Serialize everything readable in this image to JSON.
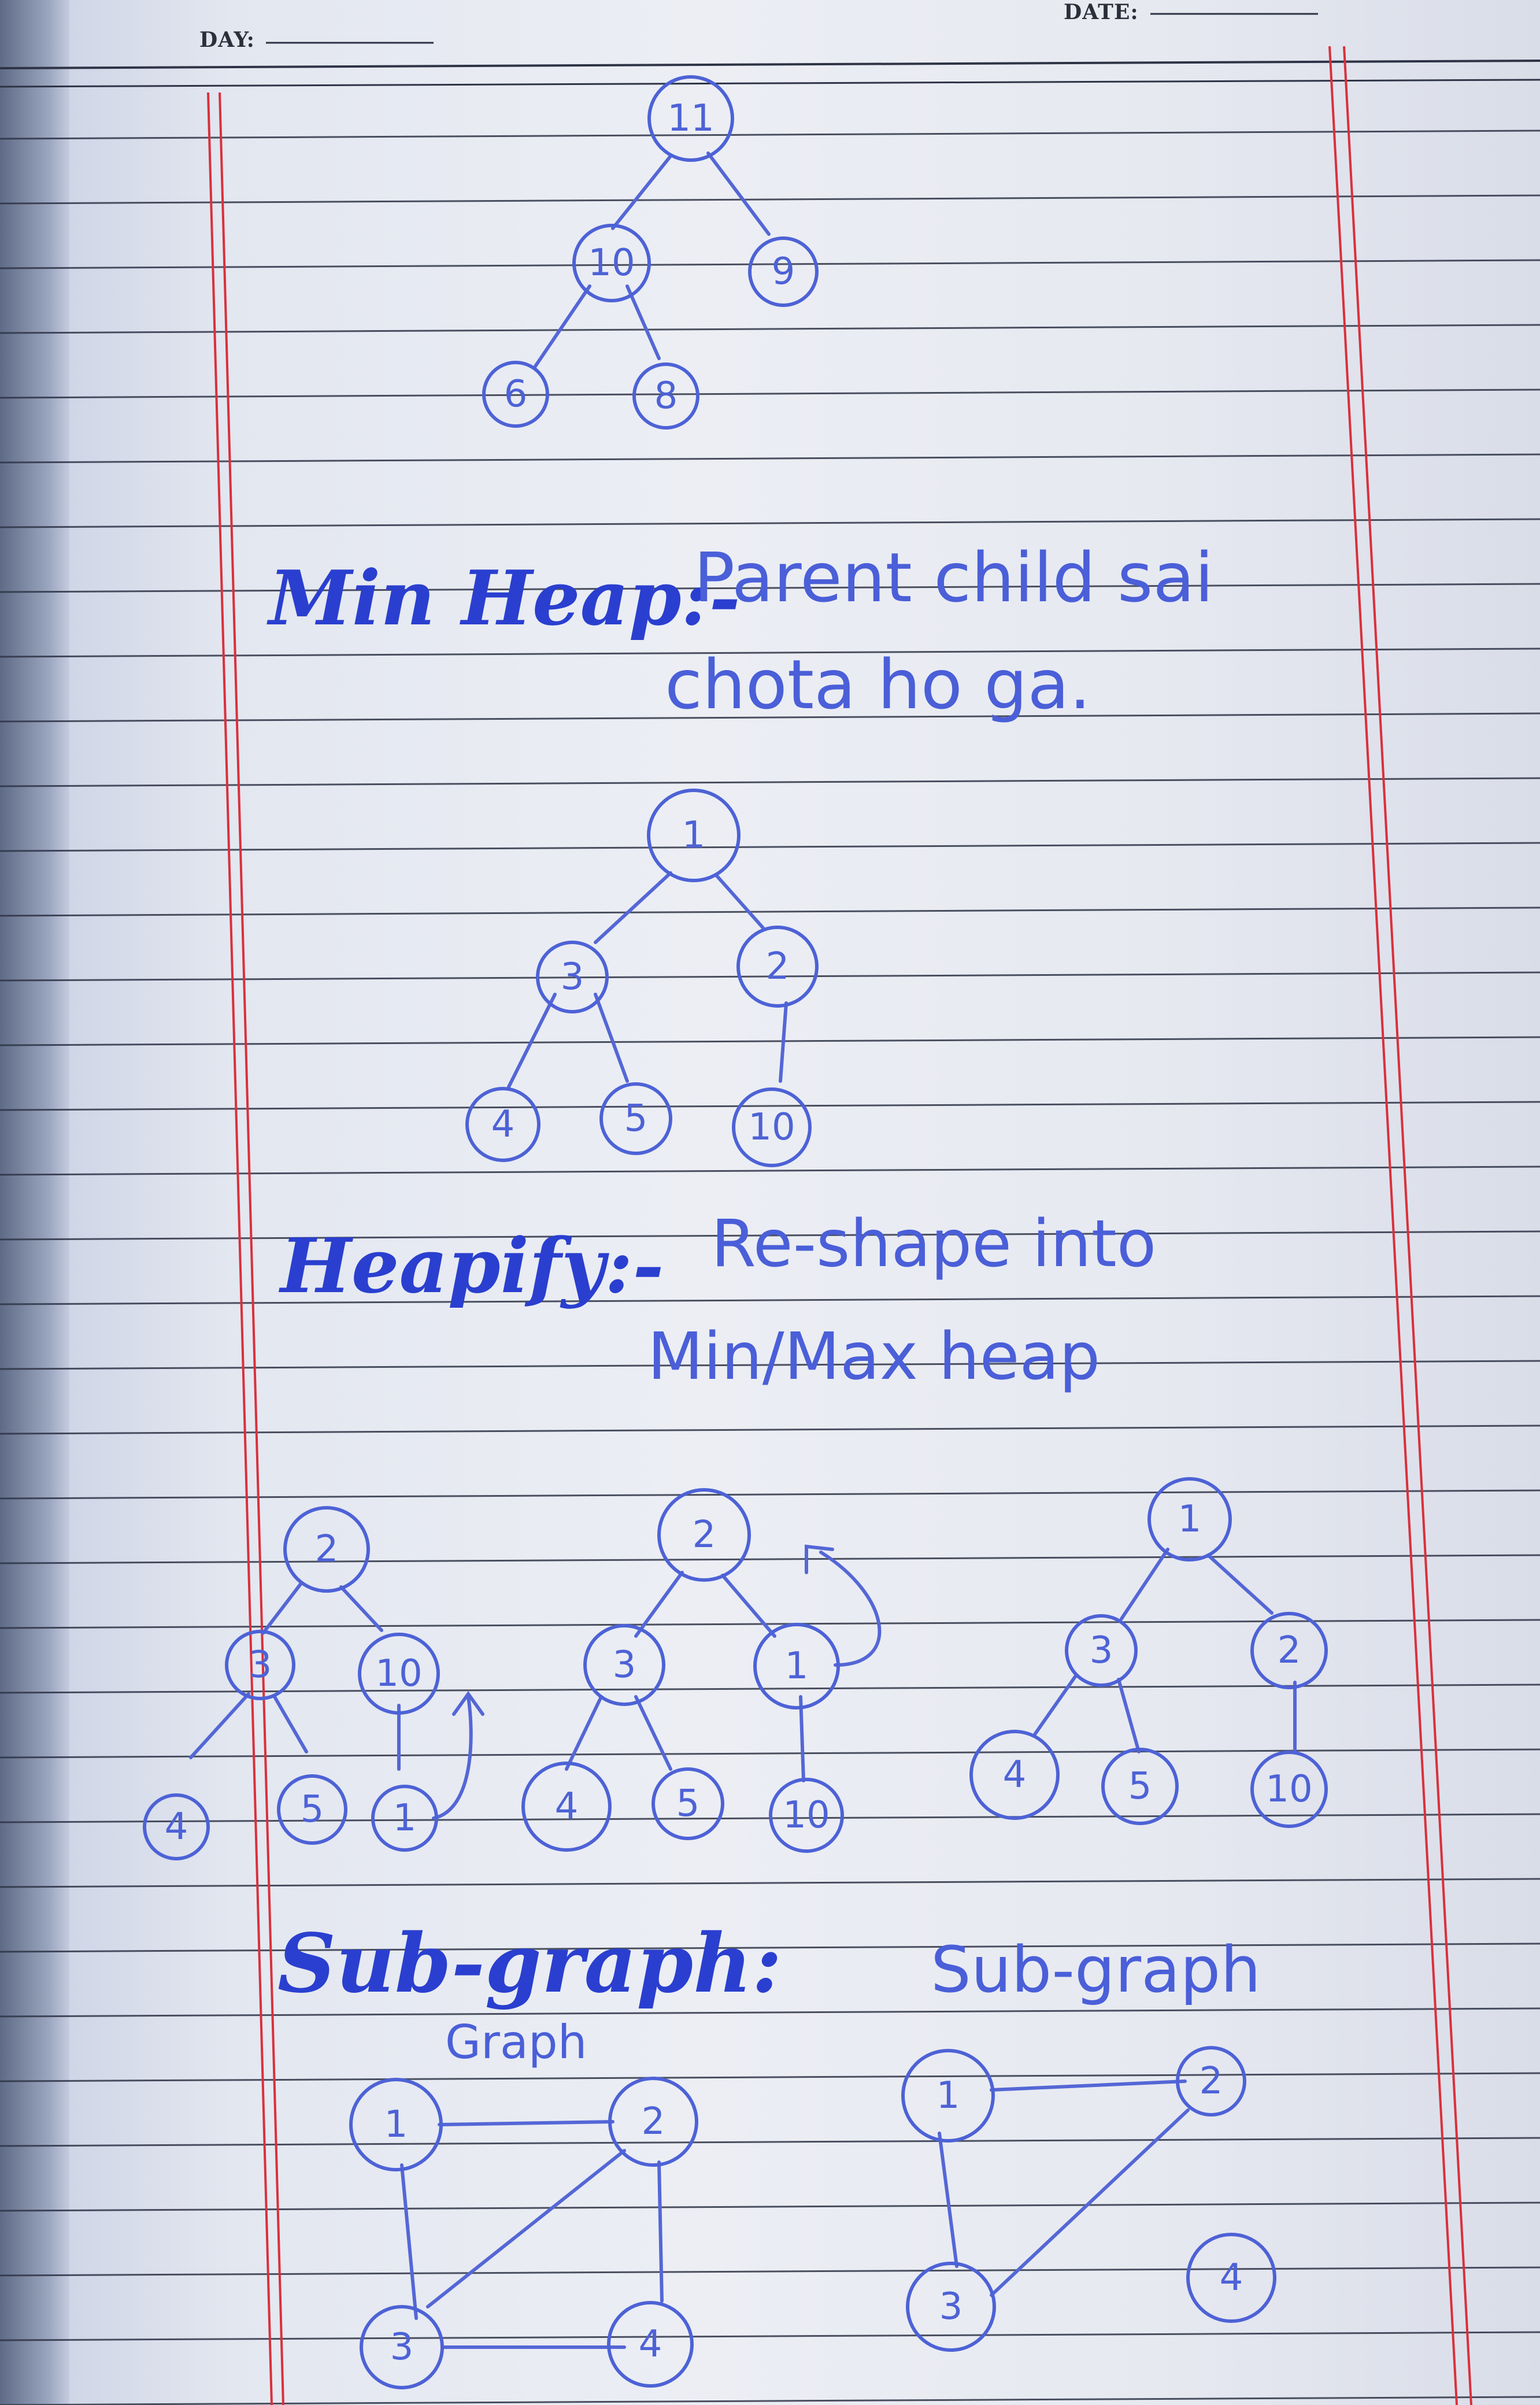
{
  "header": {
    "day_label": "DAY:",
    "date_label": "DATE:"
  },
  "max_heap_tree": {
    "nodes": [
      {
        "id": "a",
        "label": "11"
      },
      {
        "id": "b",
        "label": "10"
      },
      {
        "id": "c",
        "label": "9"
      },
      {
        "id": "d",
        "label": "6"
      },
      {
        "id": "e",
        "label": "8"
      }
    ]
  },
  "min_heap": {
    "heading": "Min Heap:-",
    "definition_line1": "Parent child sai",
    "definition_line2": "chota ho ga.",
    "nodes": [
      {
        "id": "a",
        "label": "1"
      },
      {
        "id": "b",
        "label": "3"
      },
      {
        "id": "c",
        "label": "2"
      },
      {
        "id": "d",
        "label": "4"
      },
      {
        "id": "e",
        "label": "5"
      },
      {
        "id": "f",
        "label": "10"
      }
    ]
  },
  "heapify": {
    "heading": "Heapify:-",
    "definition_line1": "Re-shape into",
    "definition_line2": "Min/Max heap",
    "step1": [
      {
        "id": "a",
        "label": "2"
      },
      {
        "id": "b",
        "label": "3"
      },
      {
        "id": "c",
        "label": "10"
      },
      {
        "id": "d",
        "label": "4"
      },
      {
        "id": "e",
        "label": "5"
      },
      {
        "id": "f",
        "label": "1"
      }
    ],
    "step2": [
      {
        "id": "a",
        "label": "2"
      },
      {
        "id": "b",
        "label": "3"
      },
      {
        "id": "c",
        "label": "1"
      },
      {
        "id": "d",
        "label": "4"
      },
      {
        "id": "e",
        "label": "5"
      },
      {
        "id": "f",
        "label": "10"
      }
    ],
    "step3": [
      {
        "id": "a",
        "label": "1"
      },
      {
        "id": "b",
        "label": "3"
      },
      {
        "id": "c",
        "label": "2"
      },
      {
        "id": "d",
        "label": "4"
      },
      {
        "id": "e",
        "label": "5"
      },
      {
        "id": "f",
        "label": "10"
      }
    ]
  },
  "subgraph": {
    "heading": "Sub-graph:",
    "graph_label": "Graph",
    "subgraph_label": "Sub-graph",
    "graph_nodes": [
      {
        "id": "n1",
        "label": "1"
      },
      {
        "id": "n2",
        "label": "2"
      },
      {
        "id": "n3",
        "label": "3"
      },
      {
        "id": "n4",
        "label": "4"
      }
    ],
    "subgraph_nodes": [
      {
        "id": "n1",
        "label": "1"
      },
      {
        "id": "n2",
        "label": "2"
      },
      {
        "id": "n3",
        "label": "3"
      },
      {
        "id": "n4",
        "label": "4"
      }
    ]
  }
}
